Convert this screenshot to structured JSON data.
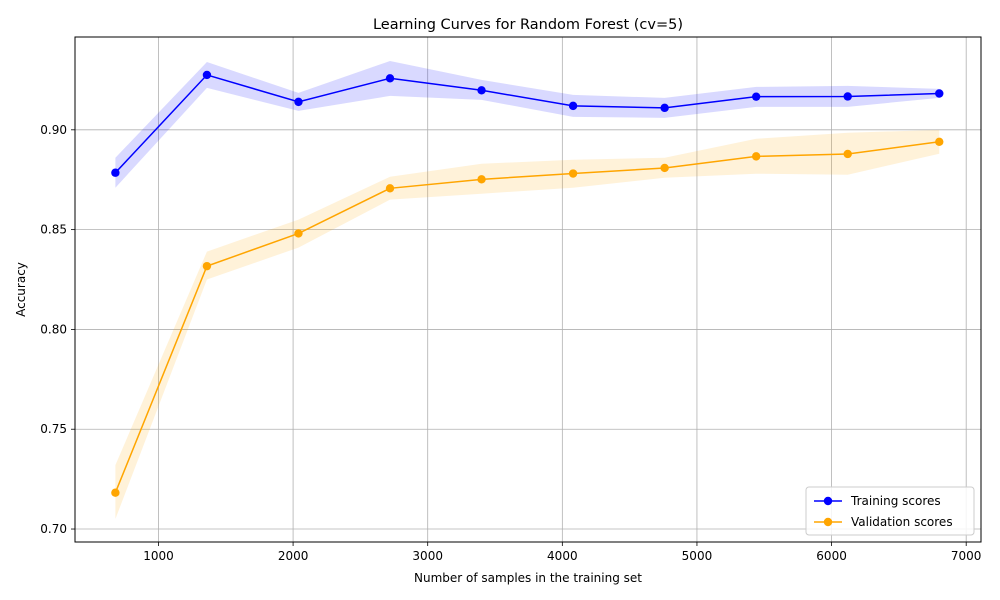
{
  "chart_data": {
    "type": "line",
    "title": "Learning Curves for Random Forest (cv=5)",
    "xlabel": "Number of samples in the training set",
    "ylabel": "Accuracy",
    "xlim": [
      380,
      7110
    ],
    "ylim": [
      0.6935,
      0.9465
    ],
    "x_ticks": [
      1000,
      2000,
      3000,
      4000,
      5000,
      6000,
      7000
    ],
    "y_ticks": [
      0.7,
      0.75,
      0.8,
      0.85,
      0.9
    ],
    "y_tick_labels": [
      "0.70",
      "0.75",
      "0.80",
      "0.85",
      "0.90"
    ],
    "grid": true,
    "legend_position": "lower right",
    "x": [
      680,
      1360,
      2040,
      2720,
      3400,
      4080,
      4760,
      5440,
      6120,
      6800
    ],
    "series": [
      {
        "name": "Training scores",
        "color": "#0000ff",
        "band_color": "#0000ff",
        "values": [
          0.8785,
          0.9275,
          0.914,
          0.9258,
          0.9198,
          0.912,
          0.911,
          0.9166,
          0.9167,
          0.9182
        ],
        "lower": [
          0.871,
          0.921,
          0.9095,
          0.917,
          0.915,
          0.9065,
          0.906,
          0.9115,
          0.9115,
          0.916
        ],
        "upper": [
          0.886,
          0.934,
          0.9185,
          0.9345,
          0.925,
          0.9175,
          0.916,
          0.9215,
          0.922,
          0.9205
        ]
      },
      {
        "name": "Validation scores",
        "color": "#ffa500",
        "band_color": "#ffa500",
        "values": [
          0.7182,
          0.8317,
          0.8481,
          0.8707,
          0.8752,
          0.8781,
          0.8809,
          0.8867,
          0.8879,
          0.894
        ],
        "lower": [
          0.705,
          0.825,
          0.841,
          0.865,
          0.868,
          0.871,
          0.876,
          0.878,
          0.8775,
          0.888
        ],
        "upper": [
          0.732,
          0.839,
          0.855,
          0.8765,
          0.883,
          0.885,
          0.886,
          0.8955,
          0.8985,
          0.9
        ]
      }
    ]
  }
}
